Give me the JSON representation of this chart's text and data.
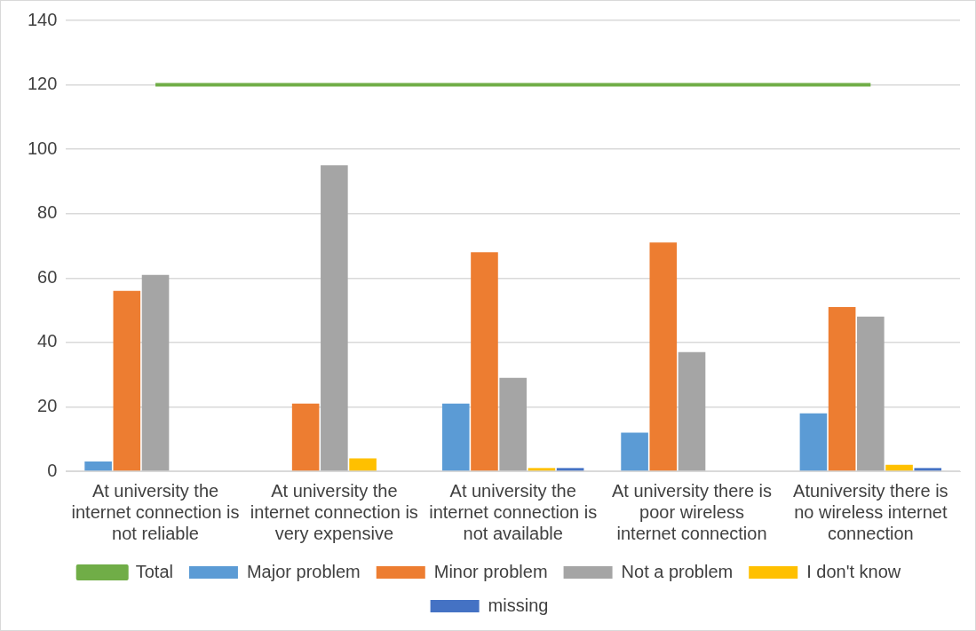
{
  "chart_data": {
    "type": "bar",
    "categories": [
      "At university the internet connection is not reliable",
      "At university the internet connection is very expensive",
      "At university the internet connection is not available",
      "At university there is poor wireless internet connection",
      "Atuniversity there is no wireless internet connection"
    ],
    "series": [
      {
        "name": "Major problem",
        "color": "#5b9bd5",
        "values": [
          3,
          0,
          21,
          12,
          18
        ]
      },
      {
        "name": "Minor problem",
        "color": "#ed7d31",
        "values": [
          56,
          21,
          68,
          71,
          51
        ]
      },
      {
        "name": "Not a problem",
        "color": "#a5a5a5",
        "values": [
          61,
          95,
          29,
          37,
          48
        ]
      },
      {
        "name": "I don't know",
        "color": "#ffc000",
        "values": [
          0,
          4,
          1,
          0,
          2
        ]
      },
      {
        "name": "missing",
        "color": "#4472c4",
        "values": [
          0,
          0,
          1,
          0,
          1
        ]
      },
      {
        "name": "Total",
        "type": "line",
        "color": "#70ad47",
        "values": [
          120,
          120,
          120,
          120,
          120
        ]
      }
    ],
    "ylim": [
      0,
      140
    ],
    "yticks": [
      0,
      20,
      40,
      60,
      80,
      100,
      120,
      140
    ],
    "grid": "y",
    "legend": "bottom",
    "marker": "none",
    "line_style": "solid"
  }
}
